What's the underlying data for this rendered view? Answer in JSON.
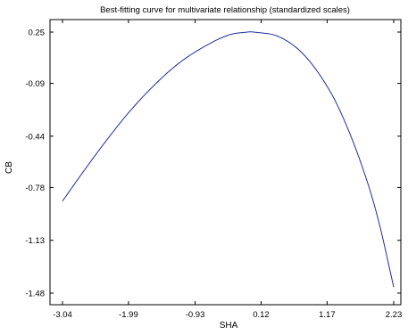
{
  "chart_data": {
    "type": "line",
    "title": "Best-fitting curve for multivariate relationship (standardized scales)",
    "xlabel": "SHA",
    "ylabel": "CB",
    "xlim": [
      -3.04,
      2.23
    ],
    "ylim": [
      -1.48,
      0.25
    ],
    "x_ticks": [
      "-3.04",
      "-1.99",
      "-0.93",
      "0.12",
      "1.17",
      "2.23"
    ],
    "y_ticks": [
      "0.25",
      "-0.09",
      "-0.44",
      "-0.78",
      "-1.13",
      "-1.48"
    ],
    "grid": false,
    "legend": "none",
    "line_color": "#1f2f9a",
    "series": [
      {
        "x": [
          -3.04,
          -2.7,
          -2.4,
          -2.0,
          -1.6,
          -1.2,
          -0.8,
          -0.4,
          -0.1,
          0.0,
          0.4,
          0.8,
          1.2,
          1.5,
          1.8,
          2.0,
          2.23
        ],
        "y": [
          -0.87,
          -0.67,
          -0.5,
          -0.29,
          -0.11,
          0.04,
          0.15,
          0.23,
          0.25,
          0.25,
          0.22,
          0.1,
          -0.13,
          -0.39,
          -0.73,
          -1.02,
          -1.44
        ]
      }
    ]
  }
}
